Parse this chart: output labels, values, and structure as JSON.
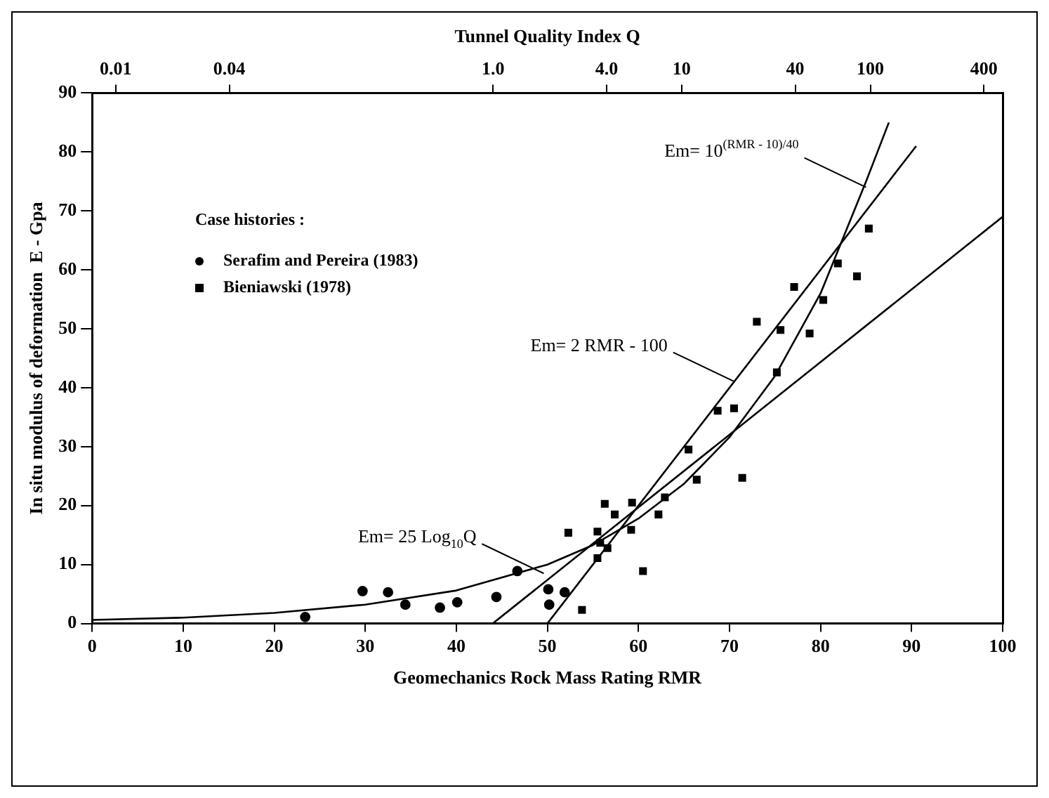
{
  "chart_data": {
    "type": "scatter",
    "xlabel": "Geomechanics Rock Mass Rating RMR",
    "ylabel": "In situ modulus of deformation  E - Gpa",
    "x2label": "Tunnel Quality Index Q",
    "legend_title": "Case histories :",
    "xlim": [
      0,
      100
    ],
    "xticks": [
      0,
      10,
      20,
      30,
      40,
      50,
      60,
      70,
      80,
      90,
      100
    ],
    "ylim": [
      0,
      90
    ],
    "yticks": [
      0,
      10,
      20,
      30,
      40,
      50,
      60,
      70,
      80,
      90
    ],
    "x2lim": [
      0.0075,
      503
    ],
    "x2ticks": [
      0.01,
      0.04,
      {
        "value": 1,
        "label": "1.0"
      },
      {
        "value": 4,
        "label": "4.0"
      },
      10,
      40,
      100,
      400
    ],
    "grid": false,
    "legend": "top left",
    "log": "x2",
    "series": [
      {
        "name": "Serafim and Pereira (1983)",
        "type": "scatter",
        "marker": "circle",
        "color": "#000000",
        "x": [
          23.4,
          29.7,
          32.5,
          34.4,
          38.2,
          40.1,
          44.4,
          46.7,
          50.1,
          50.2,
          51.9
        ],
        "values": [
          1.1,
          5.5,
          5.3,
          3.2,
          2.7,
          3.6,
          4.5,
          8.9,
          5.8,
          3.2,
          5.3
        ]
      },
      {
        "name": "Bieniawski (1978)",
        "type": "scatter",
        "marker": "square",
        "color": "#000000",
        "x": [
          52.3,
          53.8,
          55.5,
          55.8,
          55.5,
          56.6,
          56.3,
          57.4,
          59.3,
          59.2,
          60.5,
          62.2,
          62.9,
          65.5,
          66.4,
          68.7,
          70.5,
          71.4,
          73.0,
          75.2,
          75.6,
          77.1,
          78.8,
          80.3,
          81.9,
          84.0,
          85.3
        ],
        "values": [
          15.4,
          2.3,
          15.6,
          13.7,
          11.1,
          12.8,
          20.3,
          18.5,
          20.5,
          15.9,
          8.9,
          18.5,
          21.4,
          29.5,
          24.4,
          36.1,
          36.5,
          24.7,
          51.2,
          42.6,
          49.8,
          57.1,
          49.2,
          54.9,
          61.1,
          58.9,
          67.0
        ]
      },
      {
        "type": "line",
        "marker": "none",
        "line_style": "solid",
        "color": "#000000",
        "x": [
          0,
          10,
          20,
          30,
          40,
          50,
          55,
          60,
          65,
          70,
          75,
          80,
          85,
          87.5
        ],
        "values": [
          0.6,
          1,
          1.8,
          3.2,
          5.6,
          10,
          13.3,
          17.8,
          23.7,
          31.6,
          42,
          56,
          75,
          85
        ]
      },
      {
        "type": "line",
        "marker": "none",
        "line_style": "solid",
        "color": "#000000",
        "x": [
          50,
          90.5
        ],
        "values": [
          0,
          81
        ]
      },
      {
        "type": "line",
        "marker": "none",
        "line_style": "solid",
        "color": "#000000",
        "x": [
          44,
          100
        ],
        "values": [
          0,
          69
        ]
      }
    ],
    "annotations": [
      {
        "text": "Em= 10$^{(RMR - 10)/40}$",
        "x": 85,
        "y": 74
      },
      {
        "text": "Em= 2 RMR - 100",
        "x": 70.6,
        "y": 41
      },
      {
        "text": "Em= 25 Log$_{10}$Q",
        "x": 49.6,
        "y": 8.5
      }
    ]
  }
}
